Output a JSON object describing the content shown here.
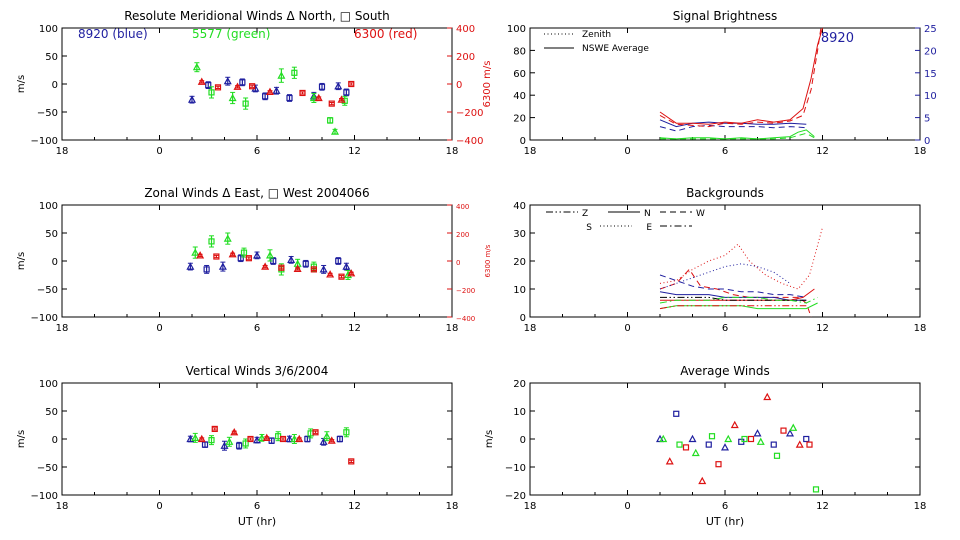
{
  "figure": {
    "xlabel": "UT (hr)",
    "x_ticks": [
      "18",
      "0",
      "6",
      "12",
      "18"
    ],
    "colors": {
      "blue": "#1f1f9f",
      "green": "#22dd22",
      "red": "#dd1111",
      "black": "#000000"
    }
  },
  "chart_data": [
    {
      "id": "meridional",
      "type": "scatter",
      "title": "Resolute Meridional Winds Δ North, □ South",
      "ylabel": "m/s",
      "ylim": [
        -100,
        100
      ],
      "yticks": [
        "100",
        "50",
        "0",
        "−50",
        "−100"
      ],
      "right_ylabel": "6300 m/s",
      "right_ylim": [
        -400,
        400
      ],
      "right_yticks": [
        "400",
        "200",
        "0",
        "−200",
        "−400"
      ],
      "legend": [
        {
          "text": "8920 (blue)",
          "color": "blue"
        },
        {
          "text": "5577 (green)",
          "color": "green"
        },
        {
          "text": "6300 (red)",
          "color": "red"
        }
      ],
      "series": [
        {
          "name": "8920",
          "color": "blue",
          "x": [
            2.0,
            3.0,
            4.2,
            5.1,
            5.9,
            6.5,
            7.2,
            8.0,
            9.5,
            10.0,
            11.0,
            11.5
          ],
          "y": [
            -28,
            -2,
            5,
            3,
            -8,
            -22,
            -12,
            -25,
            -22,
            -5,
            -4,
            -15
          ],
          "err": [
            6,
            6,
            7,
            6,
            6,
            6,
            6,
            6,
            7,
            6,
            6,
            6
          ]
        },
        {
          "name": "5577",
          "color": "green",
          "x": [
            2.3,
            3.2,
            4.5,
            5.3,
            7.5,
            8.3,
            9.5,
            10.5,
            10.8,
            11.4
          ],
          "y": [
            30,
            -15,
            -25,
            -35,
            15,
            20,
            -25,
            -65,
            -85,
            -30
          ],
          "err": [
            8,
            10,
            10,
            10,
            12,
            10,
            8,
            5,
            4,
            8
          ]
        },
        {
          "name": "6300",
          "color": "red",
          "x": [
            2.6,
            3.6,
            4.8,
            5.7,
            6.8,
            8.8,
            9.8,
            10.6,
            11.2,
            11.8
          ],
          "y": [
            4,
            -6,
            -5,
            -4,
            -14,
            -16,
            -25,
            -35,
            -28,
            0
          ],
          "err": [
            2,
            2,
            2,
            2,
            2,
            2,
            2,
            2,
            2,
            2
          ]
        }
      ]
    },
    {
      "id": "zonal",
      "type": "scatter",
      "title": "Zonal Winds Δ East, □ West 2004066",
      "ylabel": "m/s",
      "ylim": [
        -100,
        100
      ],
      "yticks": [
        "100",
        "50",
        "0",
        "−50",
        "−100"
      ],
      "right_ylabel": "6300 m/s",
      "right_ylim": [
        -400,
        400
      ],
      "right_yticks": [
        "400",
        "200",
        "0",
        "−200",
        "−400"
      ],
      "series": [
        {
          "name": "8920",
          "color": "blue",
          "x": [
            1.9,
            2.9,
            3.9,
            5.0,
            6.0,
            7.0,
            8.1,
            9.0,
            10.1,
            11.0,
            11.5
          ],
          "y": [
            -10,
            -15,
            -10,
            5,
            10,
            0,
            2,
            -5,
            -15,
            0,
            -10
          ],
          "err": [
            6,
            7,
            8,
            6,
            6,
            6,
            6,
            6,
            7,
            6,
            6
          ]
        },
        {
          "name": "5577",
          "color": "green",
          "x": [
            2.2,
            3.2,
            4.2,
            5.2,
            6.8,
            7.5,
            8.5,
            9.5,
            11.6
          ],
          "y": [
            15,
            35,
            40,
            15,
            10,
            -15,
            -5,
            -10,
            -25
          ],
          "err": [
            10,
            10,
            10,
            8,
            10,
            10,
            8,
            8,
            8
          ]
        },
        {
          "name": "6300",
          "color": "red",
          "x": [
            2.5,
            3.5,
            4.5,
            5.5,
            6.5,
            7.5,
            8.5,
            9.5,
            10.5,
            11.2,
            11.8
          ],
          "y": [
            10,
            8,
            12,
            5,
            -10,
            -12,
            -14,
            -15,
            -24,
            -28,
            -22
          ],
          "err": [
            2,
            2,
            2,
            2,
            2,
            2,
            2,
            2,
            2,
            2,
            2
          ]
        }
      ]
    },
    {
      "id": "vertical",
      "type": "scatter",
      "title": "Vertical Winds 3/6/2004",
      "ylabel": "m/s",
      "xlabel": "UT (hr)",
      "ylim": [
        -100,
        100
      ],
      "yticks": [
        "100",
        "50",
        "0",
        "−50",
        "−100"
      ],
      "series": [
        {
          "name": "8920",
          "color": "blue",
          "x": [
            1.9,
            2.8,
            4.0,
            4.9,
            6.0,
            6.9,
            8.0,
            9.1,
            10.1,
            11.1
          ],
          "y": [
            0,
            -10,
            -12,
            -12,
            -2,
            -3,
            0,
            0,
            -5,
            0
          ],
          "err": [
            5,
            5,
            8,
            6,
            5,
            5,
            5,
            5,
            6,
            5
          ]
        },
        {
          "name": "5577",
          "color": "green",
          "x": [
            2.2,
            3.2,
            4.3,
            5.3,
            6.3,
            7.3,
            8.3,
            9.3,
            10.3,
            11.5
          ],
          "y": [
            2,
            -2,
            -5,
            -8,
            2,
            5,
            0,
            10,
            5,
            12
          ],
          "err": [
            8,
            8,
            8,
            8,
            6,
            8,
            8,
            8,
            8,
            8
          ]
        },
        {
          "name": "6300",
          "color": "red",
          "x": [
            2.6,
            3.4,
            4.6,
            5.6,
            6.6,
            7.6,
            8.6,
            9.6,
            10.6,
            11.8
          ],
          "y": [
            0,
            18,
            12,
            0,
            2,
            0,
            0,
            12,
            -3,
            -40
          ],
          "err": [
            2,
            2,
            2,
            2,
            2,
            2,
            2,
            2,
            2,
            2
          ]
        }
      ]
    },
    {
      "id": "brightness",
      "type": "line",
      "title": "Signal Brightness",
      "ylim": [
        0,
        100
      ],
      "yticks": [
        "100",
        "80",
        "60",
        "40",
        "20",
        "0"
      ],
      "right_ylim": [
        0,
        25
      ],
      "right_yticks": [
        "25",
        "20",
        "15",
        "10",
        "5",
        "0"
      ],
      "annotation": "8920",
      "legend": [
        {
          "text": "Zenith",
          "style": "dotted"
        },
        {
          "text": "NSWE Average",
          "style": "solid"
        }
      ],
      "series": [
        {
          "name": "8920 NSWE",
          "color": "blue",
          "style": "solid",
          "x": [
            2,
            3,
            4,
            5,
            6,
            7,
            8,
            9,
            10,
            11
          ],
          "y": [
            18,
            12,
            15,
            16,
            15,
            15,
            14,
            14,
            15,
            14
          ]
        },
        {
          "name": "8920 Zenith",
          "color": "blue",
          "style": "dashed",
          "x": [
            2,
            3,
            4,
            5,
            6,
            7,
            8,
            9,
            10,
            11
          ],
          "y": [
            12,
            8,
            12,
            13,
            12,
            12,
            12,
            11,
            12,
            11
          ]
        },
        {
          "name": "5577 NSWE",
          "color": "green",
          "style": "solid",
          "x": [
            2,
            3,
            4,
            5,
            6,
            7,
            8,
            9,
            10,
            10.5,
            11,
            11.5
          ],
          "y": [
            2,
            1,
            2,
            2,
            1,
            2,
            1,
            2,
            3,
            7,
            9,
            3
          ]
        },
        {
          "name": "5577 Zenith",
          "color": "green",
          "style": "dashed",
          "x": [
            2,
            3,
            4,
            5,
            6,
            7,
            8,
            9,
            10,
            10.5,
            11,
            11.5
          ],
          "y": [
            1,
            1,
            1,
            1,
            1,
            1,
            1,
            1,
            2,
            4,
            6,
            2
          ]
        },
        {
          "name": "6300 NSWE",
          "color": "red",
          "style": "solid",
          "x": [
            2,
            3,
            4,
            5,
            6,
            7,
            8,
            9,
            10,
            10.8,
            11.3,
            11.7,
            12
          ],
          "y": [
            25,
            15,
            15,
            14,
            16,
            15,
            18,
            16,
            18,
            28,
            55,
            85,
            100
          ]
        },
        {
          "name": "6300 Zenith",
          "color": "red",
          "style": "dashed",
          "x": [
            2,
            3,
            4,
            5,
            6,
            7,
            8,
            9,
            10,
            10.8,
            11.3,
            11.7,
            11.9
          ],
          "y": [
            22,
            14,
            13,
            12,
            15,
            14,
            16,
            15,
            17,
            22,
            45,
            80,
            100
          ]
        }
      ]
    },
    {
      "id": "backgrounds",
      "type": "line",
      "title": "Backgrounds",
      "ylim": [
        0,
        40
      ],
      "yticks": [
        "40",
        "30",
        "20",
        "10",
        "0"
      ],
      "legend": [
        {
          "text": "Z",
          "style": "dashdotdot"
        },
        {
          "text": "N",
          "style": "solid"
        },
        {
          "text": "W",
          "style": "dashed"
        },
        {
          "text": "S",
          "style": "dotted"
        },
        {
          "text": "E",
          "style": "dashdot"
        }
      ],
      "series": [
        {
          "name": "red S",
          "color": "red",
          "style": "dotted",
          "x": [
            2,
            3,
            4,
            5,
            6,
            6.8,
            7.5,
            8.5,
            9.5,
            10.5,
            11.2,
            12
          ],
          "y": [
            12,
            13,
            17,
            20,
            22,
            26,
            20,
            15,
            12,
            10,
            15,
            32
          ]
        },
        {
          "name": "red W",
          "color": "red",
          "style": "dashed",
          "x": [
            2,
            3,
            3.8,
            4.5,
            5.5,
            6.5,
            7.5,
            8.5,
            9.5,
            10.5,
            11,
            11.3
          ],
          "y": [
            10,
            12,
            17,
            11,
            10,
            8,
            7,
            7,
            7,
            7,
            5,
            0
          ]
        },
        {
          "name": "blue S",
          "color": "blue",
          "style": "dotted",
          "x": [
            2,
            3,
            4,
            5,
            6,
            7,
            8,
            9,
            10
          ],
          "y": [
            10,
            12,
            14,
            16,
            18,
            19,
            18,
            16,
            12
          ]
        },
        {
          "name": "blue W",
          "color": "blue",
          "style": "dashed",
          "x": [
            2,
            3,
            4,
            5,
            6,
            7,
            8,
            9,
            10,
            11
          ],
          "y": [
            15,
            13,
            11,
            10,
            10,
            9,
            9,
            8,
            8,
            7
          ]
        },
        {
          "name": "blue N",
          "color": "blue",
          "style": "solid",
          "x": [
            2,
            3,
            4,
            5,
            6,
            7,
            8,
            9,
            10,
            11
          ],
          "y": [
            9,
            8,
            8,
            8,
            7,
            7,
            7,
            7,
            6,
            6
          ]
        },
        {
          "name": "red N",
          "color": "red",
          "style": "solid",
          "x": [
            2,
            3,
            4,
            5,
            6,
            7,
            8,
            9,
            10,
            10.8,
            11.5
          ],
          "y": [
            6,
            6,
            6,
            6,
            6,
            6,
            6,
            6,
            6,
            7,
            10
          ]
        },
        {
          "name": "black Z",
          "color": "black",
          "style": "dashdotdot",
          "x": [
            2,
            3,
            4,
            5,
            6,
            7,
            8,
            9,
            10,
            11
          ],
          "y": [
            7,
            7,
            7,
            7,
            6,
            6,
            6,
            6,
            6,
            6
          ]
        },
        {
          "name": "green E",
          "color": "green",
          "style": "dashdot",
          "x": [
            2,
            3,
            4,
            5,
            6,
            7,
            8,
            9,
            10,
            11,
            11.7
          ],
          "y": [
            5,
            6,
            6,
            6,
            7,
            7,
            7,
            6,
            6,
            5,
            7
          ]
        },
        {
          "name": "green N",
          "color": "green",
          "style": "solid",
          "x": [
            2,
            3,
            4,
            5,
            6,
            7,
            8,
            9,
            10,
            11,
            11.7
          ],
          "y": [
            3,
            4,
            4,
            4,
            4,
            4,
            3,
            3,
            3,
            3,
            5
          ]
        },
        {
          "name": "red Z",
          "color": "red",
          "style": "dashdotdot",
          "x": [
            2,
            3,
            4,
            5,
            6,
            7,
            8,
            9,
            10,
            11
          ],
          "y": [
            3,
            4,
            4,
            4,
            4,
            4,
            4,
            4,
            4,
            4
          ]
        }
      ]
    },
    {
      "id": "average",
      "type": "scatter",
      "title": "Average Winds",
      "ylabel": "m/s",
      "xlabel": "UT (hr)",
      "ylim": [
        -20,
        20
      ],
      "yticks": [
        "20",
        "10",
        "0",
        "−10",
        "−20"
      ],
      "series": [
        {
          "name": "8920",
          "color": "blue",
          "x": [
            2.0,
            3.0,
            4.0,
            5.0,
            6.0,
            7.0,
            8.0,
            9.0,
            10.0,
            11.0
          ],
          "y": [
            0,
            9,
            0,
            -2,
            -3,
            -1,
            2,
            -2,
            2,
            0
          ]
        },
        {
          "name": "5577",
          "color": "green",
          "x": [
            2.2,
            3.2,
            4.2,
            5.2,
            6.2,
            7.2,
            8.2,
            9.2,
            10.2,
            11.6
          ],
          "y": [
            0,
            -2,
            -5,
            1,
            0,
            0,
            -1,
            -6,
            4,
            -18
          ]
        },
        {
          "name": "6300",
          "color": "red",
          "x": [
            2.6,
            3.6,
            4.6,
            5.6,
            6.6,
            7.6,
            8.6,
            9.6,
            10.6,
            11.2
          ],
          "y": [
            -8,
            -3,
            -15,
            -9,
            5,
            0,
            15,
            3,
            -2,
            -2
          ]
        }
      ]
    }
  ]
}
